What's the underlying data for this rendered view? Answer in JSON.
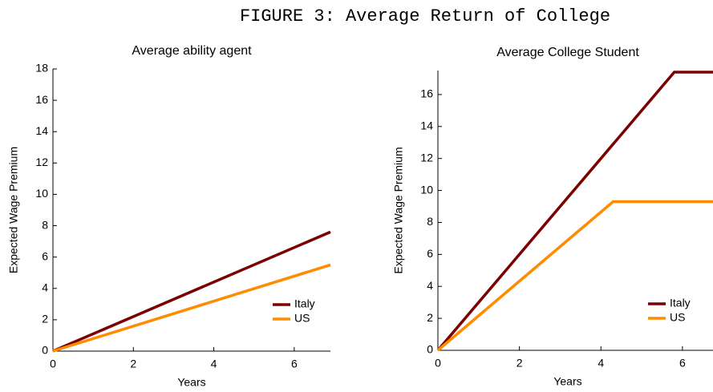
{
  "figure_title": "FIGURE 3:  Average Return of College",
  "chart_data": [
    {
      "type": "line",
      "title": "Average ability agent",
      "x_label": "Years",
      "y_label": "Expected Wage Premium",
      "xlim": [
        0,
        6.9
      ],
      "xticks": [
        0,
        2,
        4,
        6
      ],
      "ylim": [
        0,
        18
      ],
      "yticks": [
        0,
        2,
        4,
        6,
        8,
        10,
        12,
        14,
        16,
        18
      ],
      "legend": "lower right",
      "series": [
        {
          "name": "Italy",
          "color": "#7b0000",
          "x": [
            0,
            6.9
          ],
          "values": [
            0,
            7.6
          ]
        },
        {
          "name": "US",
          "color": "#ff8c00",
          "x": [
            0,
            6.9
          ],
          "values": [
            0,
            5.5
          ]
        }
      ]
    },
    {
      "type": "line",
      "title": "Average College Student",
      "x_label": "Years",
      "y_label": "Expected Wage Premium",
      "xlim": [
        0,
        6.75
      ],
      "xticks": [
        0,
        2,
        4,
        6
      ],
      "ylim": [
        0,
        17.5
      ],
      "yticks": [
        0,
        2,
        4,
        6,
        8,
        10,
        12,
        14,
        16
      ],
      "legend": "lower right",
      "series": [
        {
          "name": "Italy",
          "color": "#7b0000",
          "x": [
            0,
            5.8,
            6.75
          ],
          "values": [
            0,
            17.4,
            17.4
          ]
        },
        {
          "name": "US",
          "color": "#ff8c00",
          "x": [
            0,
            4.3,
            6.75
          ],
          "values": [
            0,
            9.3,
            9.3
          ]
        }
      ]
    }
  ]
}
